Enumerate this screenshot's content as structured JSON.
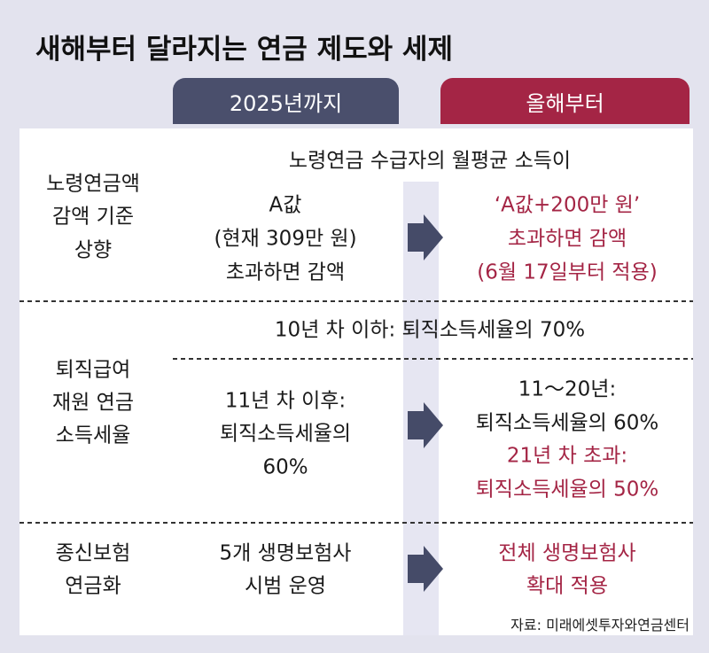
{
  "title": "새해부터 달라지는 연금 제도와 세제",
  "columns": [
    "2025년까지",
    "올해부터"
  ],
  "rows": [
    {
      "label": [
        "노령연금액",
        "감액 기준",
        "상향"
      ],
      "shared": "노령연금 수급자의 월평균 소득이",
      "before": [
        "A값",
        "(현재 309만 원)",
        "초과하면 감액"
      ],
      "after_highlight": [
        "‘A값+200만 원’",
        "초과하면 감액",
        "(6월 17일부터 적용)"
      ]
    },
    {
      "label": [
        "퇴직급여",
        "재원 연금",
        "소득세율"
      ],
      "shared": "10년 차 이하: 퇴직소득세율의 70%",
      "before": [
        "11년 차 이후:",
        "퇴직소득세율의",
        "60%"
      ],
      "after": [
        "11～20년:",
        "퇴직소득세율의 60%"
      ],
      "after_highlight": [
        "21년 차 초과:",
        "퇴직소득세율의 50%"
      ]
    },
    {
      "label": [
        "종신보험",
        "연금화"
      ],
      "before": [
        "5개 생명보험사",
        "시범 운영"
      ],
      "after_highlight": [
        "전체 생명보험사",
        "확대 적용"
      ]
    }
  ],
  "source": "자료: 미래에셋투자와연금센터"
}
